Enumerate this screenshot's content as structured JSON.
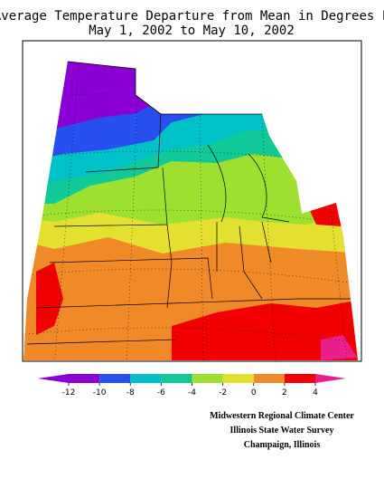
{
  "header": {
    "title_lines": [
      "Average Temperature Departure from Mean in Degrees F",
      "May 1, 2002 to May 10, 2002"
    ]
  },
  "legend": {
    "ticks": [
      -12,
      -10,
      -8,
      -6,
      -4,
      -2,
      0,
      2,
      4
    ],
    "colors": [
      "#8a00d4",
      "#8a00d4",
      "#2850f0",
      "#00c0c8",
      "#10c898",
      "#9ee030",
      "#e4e030",
      "#f08a28",
      "#f00000",
      "#e8208c"
    ]
  },
  "credits": [
    "Midwestern Regional Climate Center",
    "Illinois State Water Survey",
    "Champaign, Illinois"
  ]
}
